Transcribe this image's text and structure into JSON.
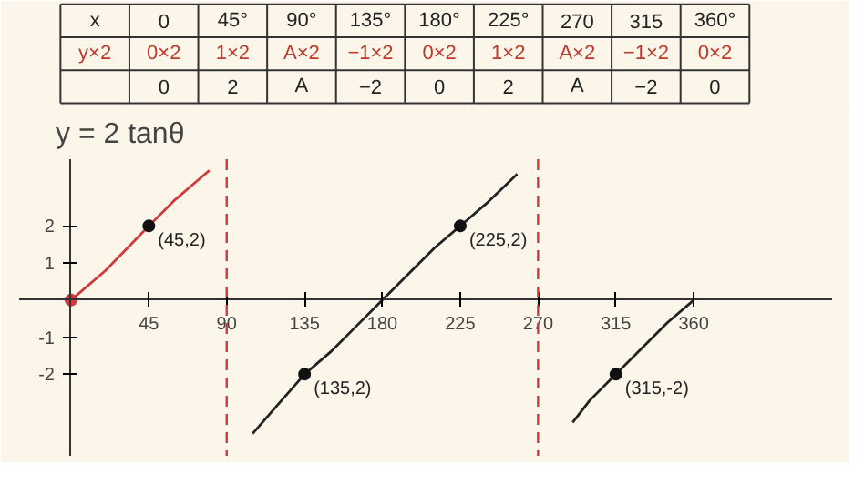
{
  "chart_data": {
    "type": "line",
    "title": "y = 2 tanθ",
    "xlim": [
      -30,
      440
    ],
    "ylim": [
      -4.2,
      3.8
    ],
    "xticks": [
      45,
      90,
      135,
      180,
      225,
      270,
      315,
      360
    ],
    "yticks": [
      -2,
      -1,
      1,
      2
    ],
    "grid": false,
    "series": [
      {
        "color": "#d03a3a",
        "x": [
          0,
          20,
          45,
          60,
          70,
          80
        ],
        "values": [
          0,
          0.8,
          2,
          2.7,
          3.1,
          3.5
        ]
      },
      {
        "color": "#222222",
        "x": [
          105,
          120,
          135,
          150,
          165,
          180,
          195,
          210,
          225,
          240,
          258
        ],
        "values": [
          -3.6,
          -2.8,
          -2,
          -1.4,
          -0.7,
          0,
          0.7,
          1.4,
          2,
          2.6,
          3.4
        ]
      },
      {
        "color": "#222222",
        "x": [
          290,
          300,
          315,
          330,
          345,
          360
        ],
        "values": [
          -3.3,
          -2.7,
          -2,
          -1.3,
          -0.6,
          0
        ]
      },
      {
        "type": "scatter",
        "color": "#111111",
        "x": [
          45,
          135,
          225,
          315
        ],
        "values": [
          2,
          -2,
          2,
          -2
        ]
      },
      {
        "type": "scatter",
        "color": "#d03a3a",
        "x": [
          0
        ],
        "values": [
          0
        ]
      }
    ],
    "ref_lines": [
      {
        "axis": "x",
        "value": 90,
        "label": null,
        "color": "#d03a3a",
        "line_style": "dashed"
      },
      {
        "axis": "x",
        "value": 270,
        "label": null,
        "color": "#d03a3a",
        "line_style": "dashed"
      }
    ],
    "annotations": [
      {
        "text": "(45,2)",
        "x": 45,
        "y": 2
      },
      {
        "text": "(135,2)",
        "x": 135,
        "y": -2
      },
      {
        "text": "(225,2)",
        "x": 225,
        "y": 2
      },
      {
        "text": "(315,-2)",
        "x": 315,
        "y": -2
      },
      "x",
      "0",
      "45°",
      "90°",
      "135°",
      "180°",
      "225°",
      "270",
      "315",
      "360°",
      "y×2",
      "0×2",
      "1×2",
      "A×2",
      "−1×2",
      "0×2",
      "1×2",
      "A×2",
      "−1×2",
      "0×2",
      "0",
      "2",
      "A",
      "−2",
      "0",
      "2",
      "A",
      "−2",
      "0"
    ]
  }
}
